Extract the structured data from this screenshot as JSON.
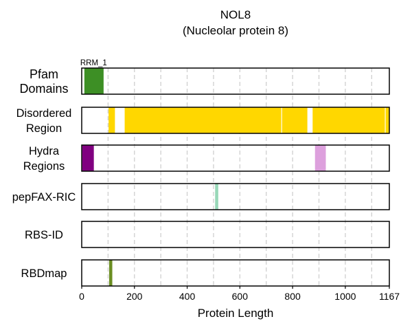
{
  "chart_data": {
    "type": "bar",
    "title": "NOL8",
    "subtitle": "(Nucleolar protein 8)",
    "xlabel": "Protein Length",
    "xlim": [
      0,
      1167
    ],
    "xticks": [
      0,
      200,
      400,
      600,
      800,
      1000,
      1167
    ],
    "grid": true,
    "tracks": [
      {
        "label_lines": [
          "Pfam",
          "Domains"
        ],
        "segments": [
          {
            "start": 10,
            "end": 83,
            "color": "#3d8f25",
            "label": "RRM_1"
          }
        ]
      },
      {
        "label_lines": [
          "Disordered",
          "Region"
        ],
        "segments": [
          {
            "start": 102,
            "end": 126,
            "color": "#ffd700"
          },
          {
            "start": 163,
            "end": 757,
            "color": "#ffd700"
          },
          {
            "start": 760,
            "end": 856,
            "color": "#ffd700"
          },
          {
            "start": 876,
            "end": 1150,
            "color": "#ffd700"
          },
          {
            "start": 1153,
            "end": 1167,
            "color": "#ffd700"
          }
        ]
      },
      {
        "label_lines": [
          "Hydra",
          "Regions"
        ],
        "segments": [
          {
            "start": 2,
            "end": 46,
            "color": "#800080"
          },
          {
            "start": 885,
            "end": 926,
            "color": "#dda0dd"
          }
        ]
      },
      {
        "label_lines": [
          "pepFAX-RIC"
        ],
        "segments": [
          {
            "start": 506,
            "end": 518,
            "color": "#98d8b8"
          }
        ]
      },
      {
        "label_lines": [
          "RBS-ID"
        ],
        "segments": []
      },
      {
        "label_lines": [
          "RBDmap"
        ],
        "segments": [
          {
            "start": 104,
            "end": 116,
            "color": "#6b8e23"
          }
        ]
      }
    ]
  }
}
